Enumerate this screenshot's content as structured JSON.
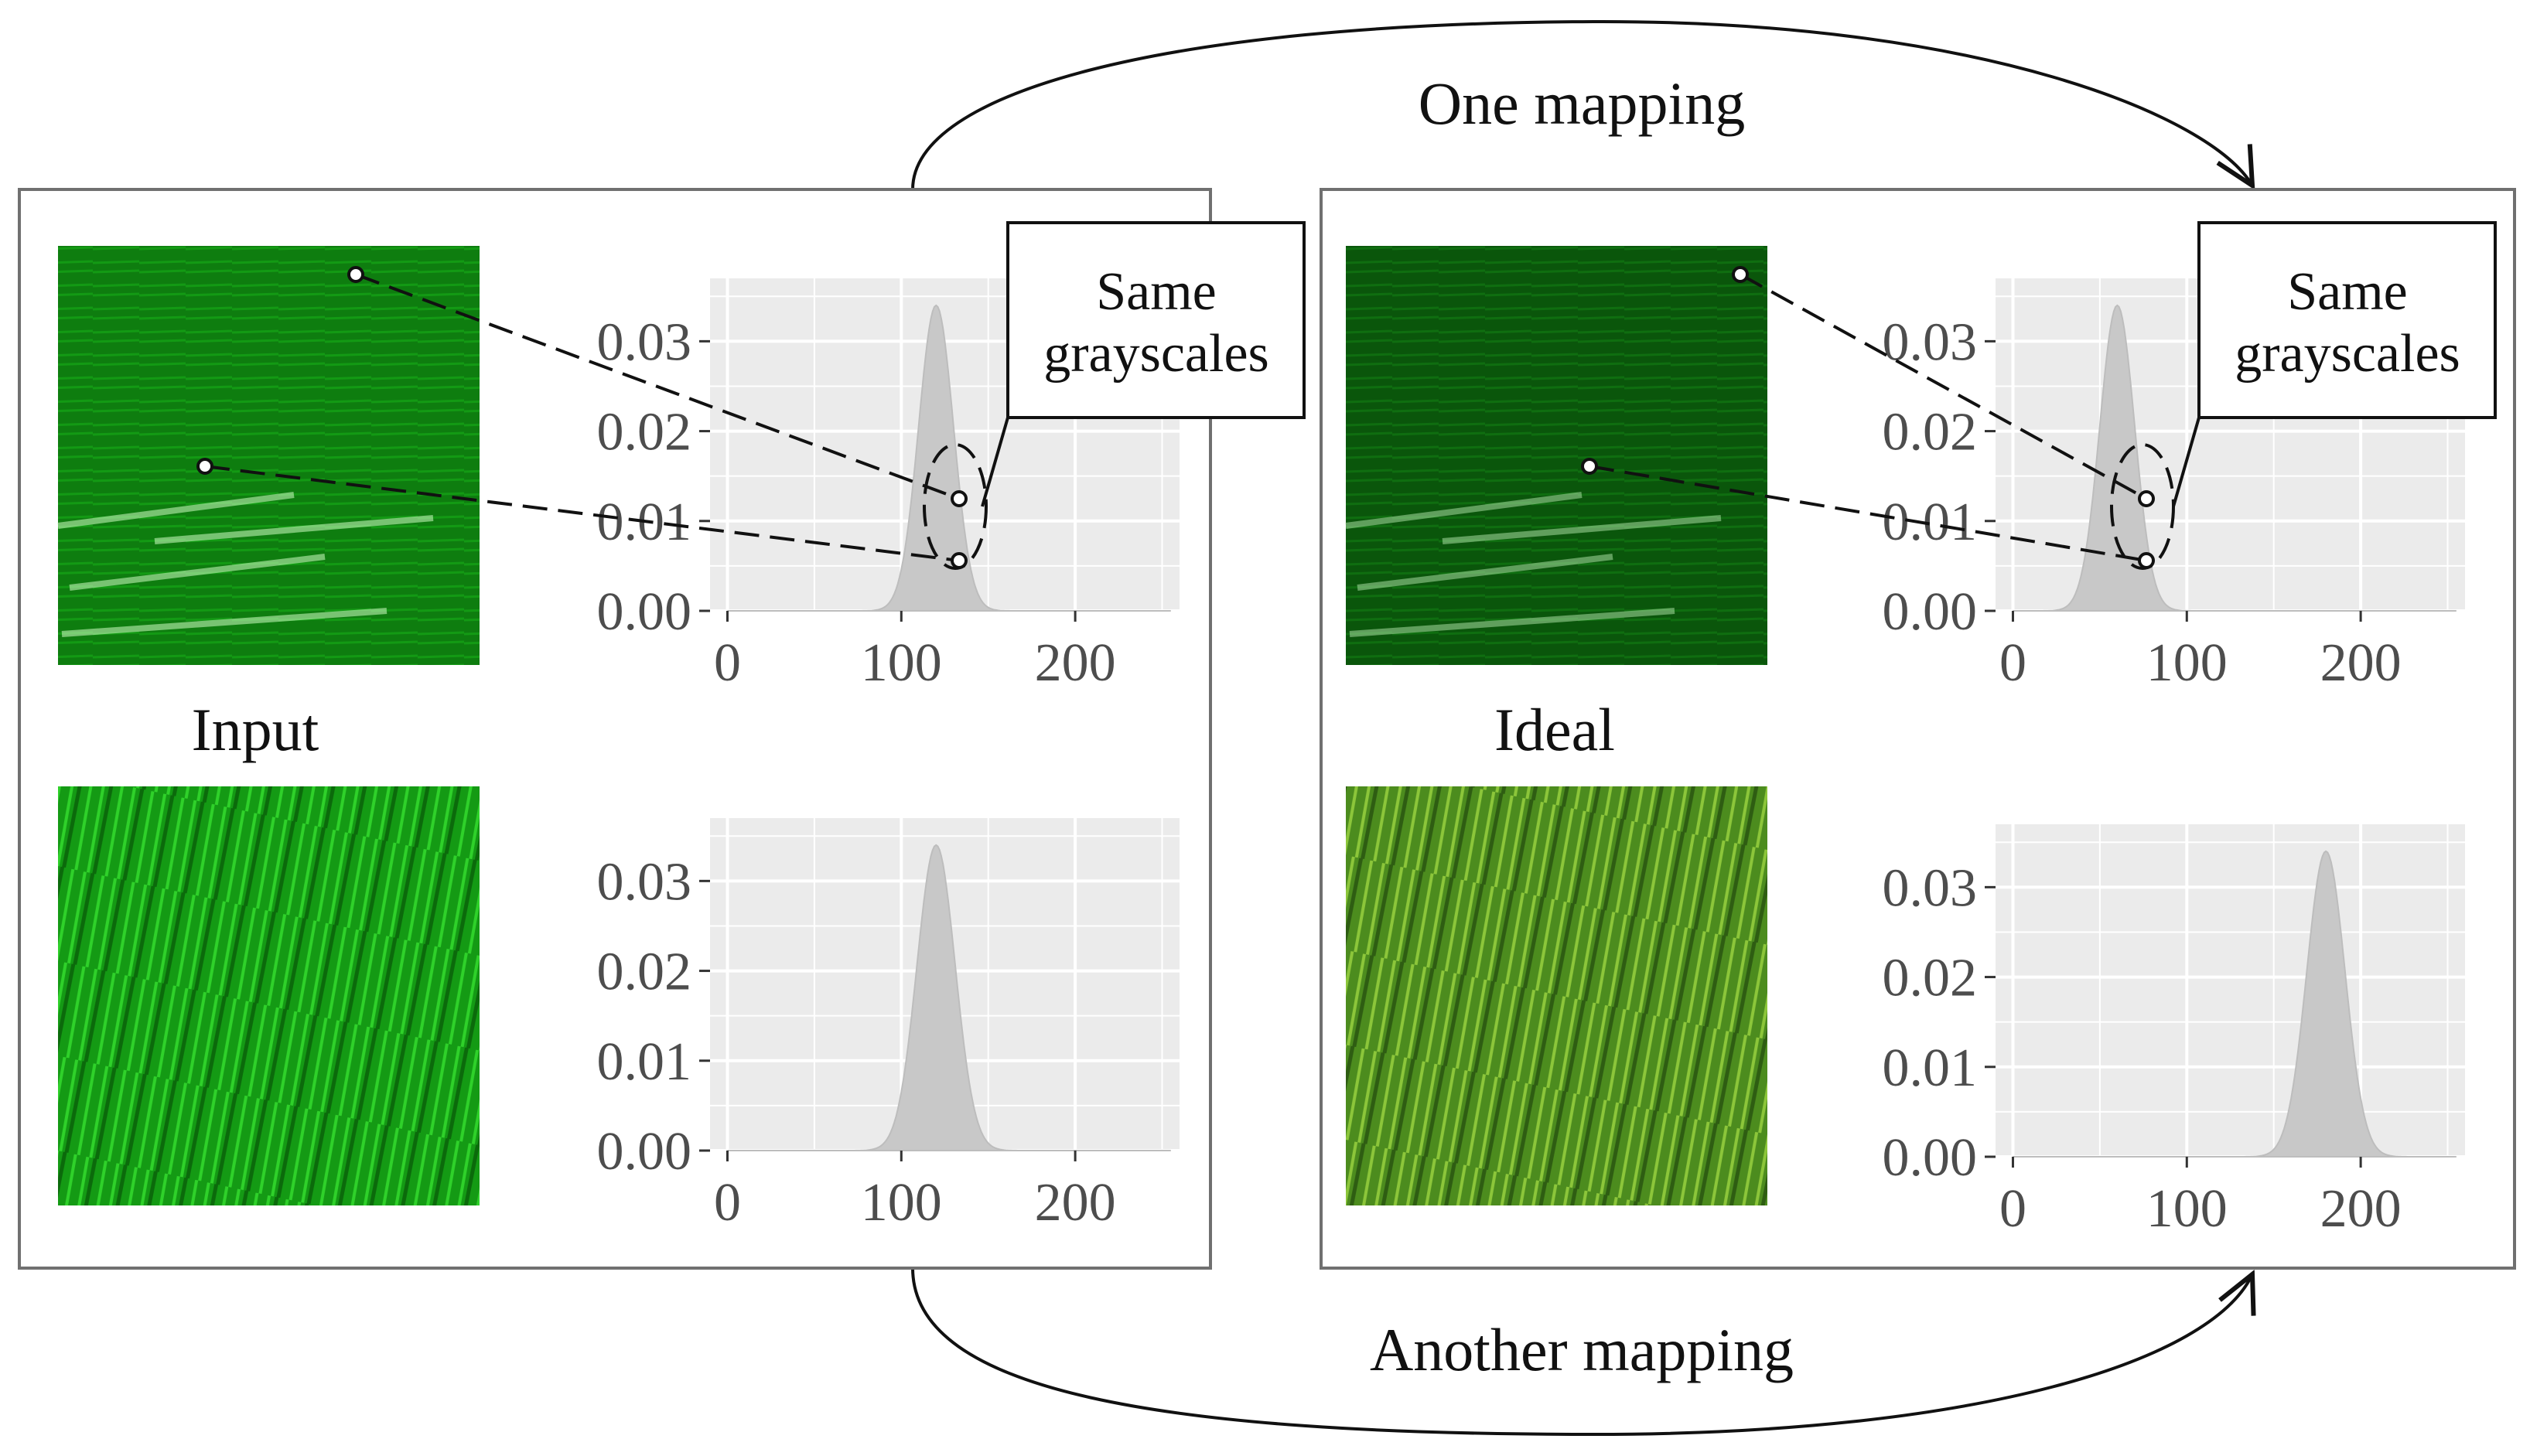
{
  "arrows": {
    "top_label": "One mapping",
    "bottom_label": "Another mapping"
  },
  "panels": [
    {
      "id": "input",
      "label": "Input",
      "callout": [
        "Same",
        "grayscales"
      ],
      "top_image": {
        "description_icon": "dark-green-grass-image",
        "color": "#0f8a10"
      },
      "bottom_image": {
        "description_icon": "bright-green-grass-image",
        "color": "#1fa81a"
      },
      "top_hist": {
        "peak_x": 120,
        "sd": 10,
        "peak_y": 0.034
      },
      "bottom_hist": {
        "peak_x": 120,
        "sd": 11,
        "peak_y": 0.034
      }
    },
    {
      "id": "ideal",
      "label": "Ideal",
      "callout": [
        "Same",
        "grayscales"
      ],
      "top_image": {
        "description_icon": "darker-green-grass-image",
        "color": "#0b5e0c"
      },
      "bottom_image": {
        "description_icon": "natural-green-grass-image",
        "color": "#4d8f1e"
      },
      "top_hist": {
        "peak_x": 60,
        "sd": 10,
        "peak_y": 0.034
      },
      "bottom_hist": {
        "peak_x": 180,
        "sd": 11,
        "peak_y": 0.034
      }
    }
  ],
  "chart_data": {
    "type": "area",
    "x_ticks": [
      "0",
      "100",
      "200"
    ],
    "y_ticks": [
      "0.00",
      "0.01",
      "0.02",
      "0.03"
    ],
    "xlim": [
      -10,
      260
    ],
    "ylim": [
      0,
      0.037
    ]
  },
  "colors": {
    "panel_bg": "#ebebeb",
    "grid": "#ffffff",
    "bar": "#c8c8c8",
    "frame": "#707070"
  }
}
